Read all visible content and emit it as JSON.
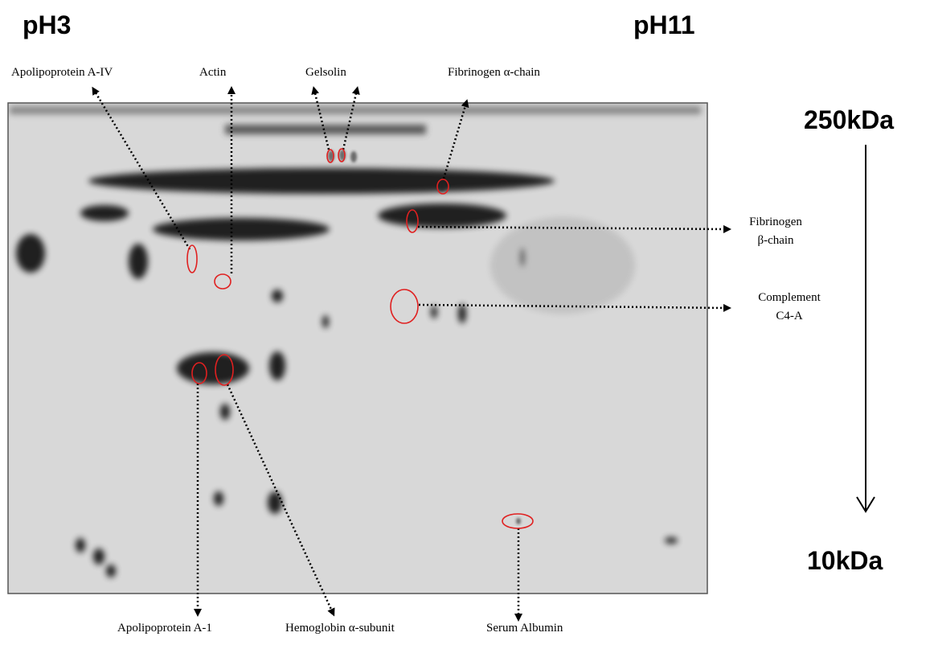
{
  "header": {
    "left": "pH3",
    "right": "pH11"
  },
  "mass_axis": {
    "top": "250kDa",
    "bottom": "10kDa"
  },
  "labels": {
    "apolipoprotein_a4": "Apolipoprotein A-IV",
    "actin": "Actin",
    "gelsolin": "Gelsolin",
    "fibrinogen_alpha": "Fibrinogen α-chain",
    "fibrinogen_beta": [
      "Fibrinogen",
      "β-chain"
    ],
    "complement": [
      "Complement",
      "C4-A"
    ],
    "apolipoprotein_a1": "Apolipoprotein A-1",
    "hemoglobin": "Hemoglobin α-subunit",
    "serum_albumin": "Serum Albumin"
  }
}
